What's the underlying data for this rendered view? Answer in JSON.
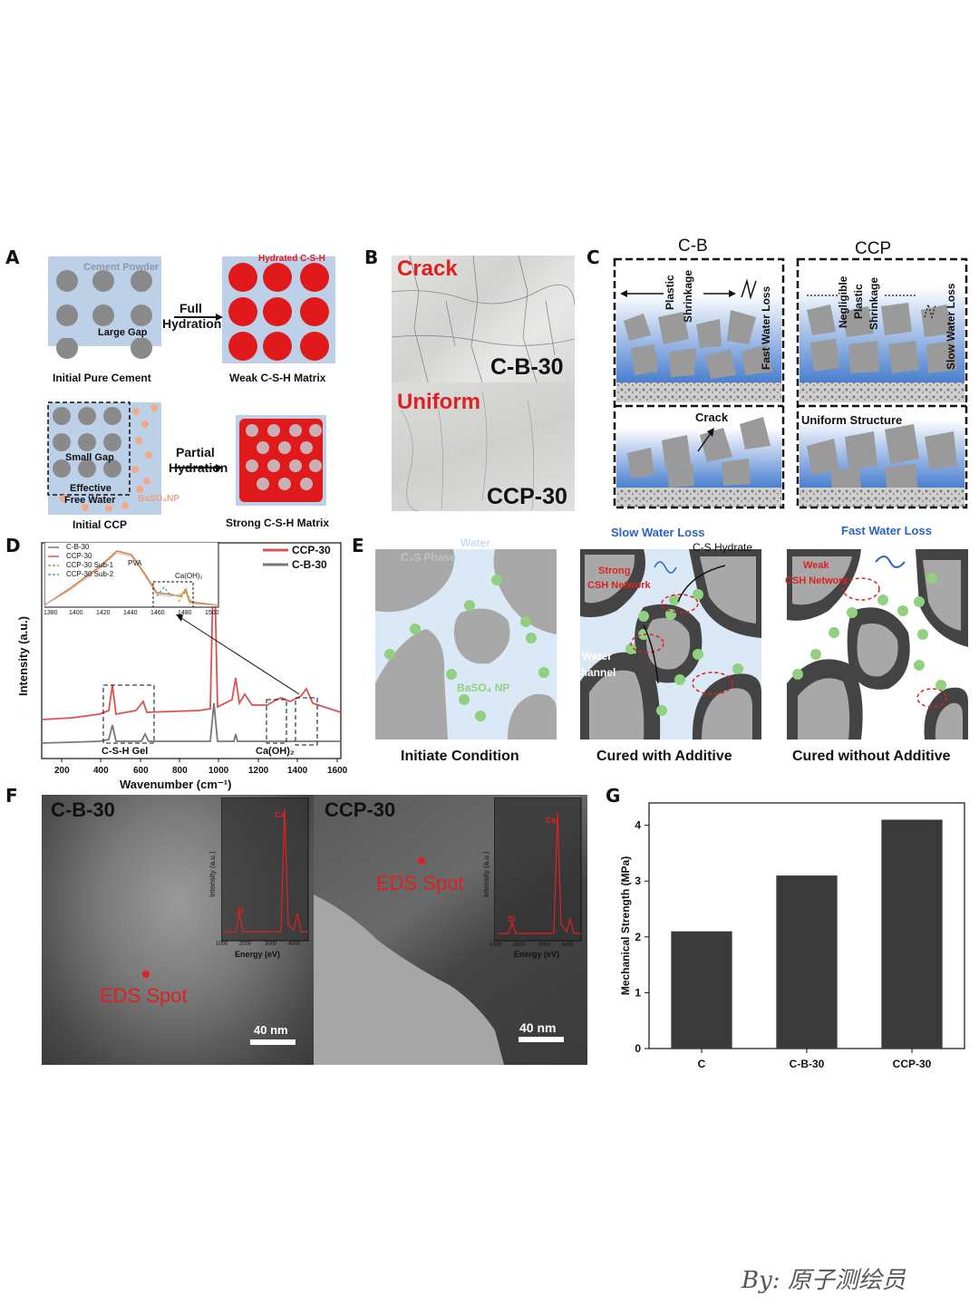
{
  "panel_labels": {
    "a": "A",
    "b": "B",
    "c": "C",
    "d": "D",
    "e": "E",
    "f": "F",
    "g": "G"
  },
  "panel_a": {
    "cement_powder": "Cement Powder",
    "large_gap": "Large Gap",
    "full": "Full",
    "hydration": "Hydration",
    "hydrated_csh": "Hydrated C-S-H",
    "initial_pure_cement": "Initial Pure Cement",
    "weak_matrix": "Weak C-S-H Matrix",
    "small_gap": "Small Gap",
    "effective": "Effective",
    "free_water": "Free Water",
    "baso4_np": "BaSO₄NP",
    "partial": "Partial",
    "hydration2": "Hydration",
    "initial_ccp": "Initial CCP",
    "strong_matrix": "Strong C-S-H Matrix"
  },
  "panel_b": {
    "crack": "Crack",
    "sample1": "C-B-30",
    "uniform": "Uniform",
    "sample2": "CCP-30"
  },
  "panel_c": {
    "col1": "C-B",
    "col2": "CCP",
    "plastic": "Plastic",
    "shrinkage": "Shrinkage",
    "fast_water_loss": "Fast Water Loss",
    "negligible": "Negligible",
    "plastic2": "Plastic",
    "shrinkage2": "Shrinkage",
    "slow_water_loss": "Slow Water Loss",
    "crack": "Crack",
    "uniform_structure": "Uniform Structure"
  },
  "panel_d": {
    "ylabel": "Intensity (a.u.)",
    "xlabel": "Wavenumber (cm⁻¹)",
    "legend": [
      "CCP-30",
      "C-B-30"
    ],
    "xticks": [
      "200",
      "400",
      "600",
      "800",
      "1000",
      "1200",
      "1400",
      "1600"
    ],
    "csh_gel": "C-S-H Gel",
    "caoh2": "Ca(OH)₂",
    "inset_legend": [
      "C-B-30",
      "CCP-30",
      "CCP-30 Sub-1",
      "CCP-30 Sub-2"
    ],
    "inset_pva": "PVA",
    "inset_caoh2": "Ca(OH)₂",
    "inset_xticks": [
      "1380",
      "1400",
      "1420",
      "1440",
      "1460",
      "1480",
      "1500"
    ]
  },
  "panel_e": {
    "water": "Water",
    "c3s_phase": "C₃S Phase",
    "baso4_np": "BaSO₄ NP",
    "slow_water_loss": "Slow Water Loss",
    "cs_hydrate": "C-S Hydrate",
    "strong": "Strong",
    "csh_network": "CSH Network",
    "water_channel_1": "Water",
    "water_channel_2": "Channel",
    "fast_water_loss": "Fast Water Loss",
    "weak": "Weak",
    "csh_network2": "CSH Network",
    "cap1": "Initiate Condition",
    "cap2": "Cured with Additive",
    "cap3": "Cured without Additive"
  },
  "panel_f": {
    "img1_title": "C-B-30",
    "img2_title": "CCP-30",
    "eds_spot": "EDS Spot",
    "eds_spot2": "EDS Spot",
    "scale1": "40 nm",
    "scale2": "40 nm",
    "inset_ylabel": "Intensity (a.u.)",
    "inset_xlabel": "Energy (eV)",
    "inset_xticks": [
      "1000",
      "2000",
      "3000",
      "4000"
    ],
    "si": "Si",
    "ca": "Ca"
  },
  "chart_data": {
    "type": "bar",
    "categories": [
      "C",
      "C-B-30",
      "CCP-30"
    ],
    "values": [
      2.1,
      3.1,
      4.1
    ],
    "ylabel": "Mechanical Strength (MPa)",
    "xlabel": "",
    "ylim": [
      0,
      4.4
    ],
    "yticks": [
      "0",
      "1",
      "2",
      "3",
      "4"
    ],
    "bar_color": "#3a3a3a"
  },
  "watermark": "By:  原子测绘员"
}
